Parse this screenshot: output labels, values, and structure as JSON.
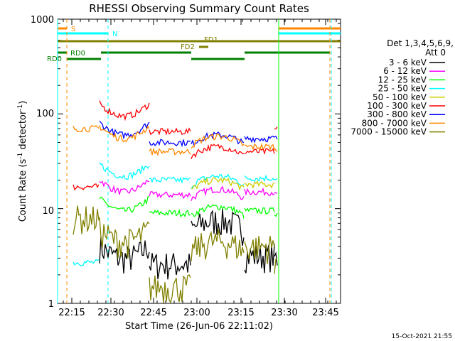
{
  "chart_data": {
    "type": "line",
    "title": "RHESSI Observing Summary Count Rates",
    "xlabel": "Start Time (26-Jun-06 22:11:02)",
    "ylabel_main": "Count Rate (s",
    "ylabel_sup1": "-1",
    "ylabel_mid": " detector",
    "ylabel_sup2": "-1",
    "ylabel_end": ")",
    "yscale": "log",
    "ylim": [
      1,
      1000
    ],
    "xlim_minutes": [
      22.2,
      23.8
    ],
    "x_ticks": [
      "22:15",
      "22:30",
      "22:45",
      "23:00",
      "23:15",
      "23:30",
      "23:45"
    ],
    "y_ticks": [
      "1",
      "10",
      "100",
      "1000"
    ],
    "legend_title_1": "Det 1,3,4,5,6,9,",
    "legend_title_2": "Att 0",
    "timestamp": "15-Oct-2021 21:55",
    "flag_labels": {
      "saa": "S",
      "night": "N",
      "fd1": "FD1",
      "fd2": "FD2",
      "rd0a": "RD0",
      "rd0b": "RD0"
    },
    "series": [
      {
        "name": "3 - 6 keV",
        "color": "#000000",
        "levels": [
          null,
          3.0,
          2.6,
          2.6,
          7.5,
          3.2,
          3.0
        ]
      },
      {
        "name": "6 - 12 keV",
        "color": "#ff00ff",
        "levels": [
          null,
          15,
          14,
          13,
          16,
          15,
          14
        ]
      },
      {
        "name": "12 - 25 keV",
        "color": "#00ff00",
        "levels": [
          null,
          9.5,
          9.0,
          8.5,
          10.5,
          9.5,
          9.0
        ]
      },
      {
        "name": "25 - 50 keV",
        "color": "#00ffff",
        "levels": [
          2.7,
          22,
          20,
          19,
          22,
          21,
          20
        ]
      },
      {
        "name": "50 - 100 keV",
        "color": "#cccc00",
        "levels": [
          null,
          null,
          null,
          null,
          20,
          18,
          null
        ]
      },
      {
        "name": "100 - 300 keV",
        "color": "#ff0000",
        "levels": [
          17,
          95,
          65,
          40,
          45,
          40,
          70
        ]
      },
      {
        "name": "300 - 800 keV",
        "color": "#0000ff",
        "levels": [
          null,
          60,
          50,
          48,
          60,
          55,
          55
        ]
      },
      {
        "name": "800 - 7000 keV",
        "color": "#ff8800",
        "levels": [
          70,
          55,
          40,
          38,
          58,
          45,
          42
        ]
      },
      {
        "name": "7000 - 15000 keV",
        "color": "#808000",
        "levels": [
          8.0,
          4.5,
          1.5,
          1.4,
          4.5,
          4.0,
          3.0
        ]
      }
    ]
  }
}
